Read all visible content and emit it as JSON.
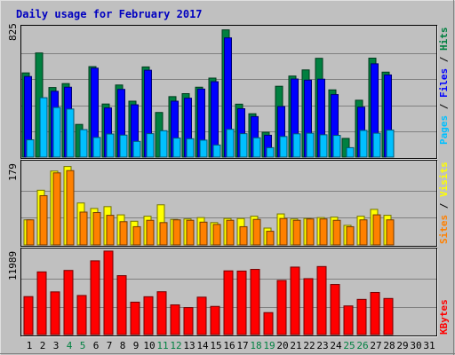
{
  "title": "Daily usage for February 2017",
  "colors": {
    "background": "#c0c0c0",
    "title": "#0000c0",
    "hits": "#008040",
    "files": "#0000ff",
    "pages": "#00c0ff",
    "visits": "#ffff00",
    "sites": "#ff8000",
    "kbytes": "#ff0000",
    "weekend_label": "#008040",
    "weekday_label": "#000000"
  },
  "chart_data": [
    {
      "type": "bar",
      "name": "hits-files-pages",
      "scale_max_label": "825",
      "ymax": 825,
      "legend": [
        "Pages",
        "Files",
        "Hits"
      ],
      "categories": [
        "1",
        "2",
        "3",
        "4",
        "5",
        "6",
        "7",
        "8",
        "9",
        "10",
        "11",
        "12",
        "13",
        "14",
        "15",
        "16",
        "17",
        "18",
        "19",
        "20",
        "21",
        "22",
        "23",
        "24",
        "25",
        "26",
        "27",
        "28",
        "29",
        "30",
        "31"
      ],
      "weekend_days": [
        4,
        5,
        11,
        12,
        18,
        19,
        25,
        26
      ],
      "series": [
        {
          "name": "Hits",
          "values": [
            536,
            663,
            443,
            468,
            208,
            576,
            338,
            459,
            356,
            574,
            284,
            385,
            404,
            445,
            503,
            810,
            337,
            276,
            158,
            451,
            516,
            555,
            629,
            428,
            119,
            362,
            630,
            541,
            0,
            0,
            0
          ]
        },
        {
          "name": "Files",
          "values": [
            513,
            0,
            419,
            445,
            0,
            566,
            313,
            431,
            333,
            553,
            0,
            356,
            375,
            433,
            480,
            759,
            308,
            258,
            139,
            322,
            497,
            490,
            496,
            398,
            0,
            318,
            594,
            523,
            0,
            0,
            0
          ]
        },
        {
          "name": "Pages",
          "values": [
            110,
            378,
            316,
            306,
            175,
            125,
            147,
            140,
            100,
            149,
            168,
            121,
            117,
            108,
            77,
            177,
            149,
            123,
            60,
            131,
            148,
            152,
            142,
            138,
            60,
            170,
            152,
            172,
            0,
            0,
            0
          ]
        }
      ]
    },
    {
      "type": "bar",
      "name": "visits-sites",
      "scale_max_label": "179",
      "ymax": 179,
      "legend": [
        "Sites",
        "Visits"
      ],
      "categories": [
        "1",
        "2",
        "3",
        "4",
        "5",
        "6",
        "7",
        "8",
        "9",
        "10",
        "11",
        "12",
        "13",
        "14",
        "15",
        "16",
        "17",
        "18",
        "19",
        "20",
        "21",
        "22",
        "23",
        "24",
        "25",
        "26",
        "27",
        "28",
        "29",
        "30",
        "31"
      ],
      "series": [
        {
          "name": "Visits",
          "values": [
            55,
            120,
            162,
            172,
            92,
            80,
            84,
            66,
            52,
            63,
            88,
            56,
            57,
            60,
            49,
            58,
            58,
            63,
            37,
            68,
            57,
            58,
            60,
            61,
            43,
            63,
            78,
            65,
            0,
            0,
            0
          ]
        },
        {
          "name": "Sites",
          "values": [
            55,
            108,
            158,
            163,
            72,
            71,
            65,
            51,
            40,
            54,
            49,
            55,
            54,
            50,
            45,
            54,
            40,
            56,
            30,
            58,
            54,
            57,
            57,
            54,
            40,
            55,
            66,
            55,
            0,
            0,
            0
          ]
        }
      ]
    },
    {
      "type": "bar",
      "name": "kbytes",
      "scale_max_label": "11989",
      "ymax": 11989,
      "legend": [
        "KBytes"
      ],
      "categories": [
        "1",
        "2",
        "3",
        "4",
        "5",
        "6",
        "7",
        "8",
        "9",
        "10",
        "11",
        "12",
        "13",
        "14",
        "15",
        "16",
        "17",
        "18",
        "19",
        "20",
        "21",
        "22",
        "23",
        "24",
        "25",
        "26",
        "27",
        "28",
        "29",
        "30",
        "31"
      ],
      "series": [
        {
          "name": "KBytes",
          "values": [
            5460,
            9010,
            6140,
            9220,
            5620,
            10600,
            12000,
            8470,
            4660,
            5440,
            6160,
            4270,
            3880,
            5380,
            4050,
            9160,
            9130,
            9370,
            3160,
            7780,
            9700,
            8040,
            9780,
            7200,
            4120,
            5060,
            6060,
            5190,
            0,
            0,
            0
          ]
        }
      ]
    }
  ]
}
